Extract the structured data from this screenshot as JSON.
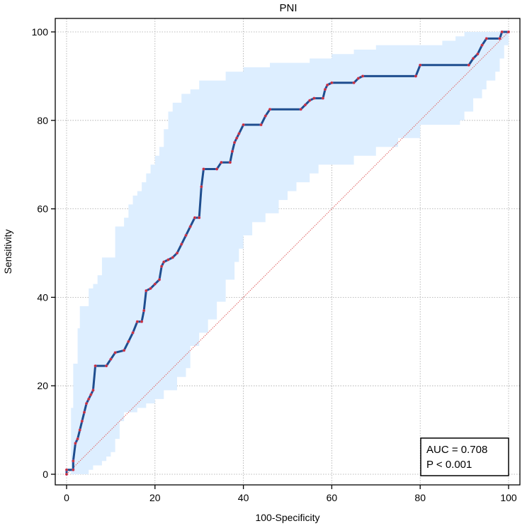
{
  "chart_data": {
    "type": "line",
    "title": "PNI",
    "xlabel": "100-Specificity",
    "ylabel": "Sensitivity",
    "xlim": [
      0,
      100
    ],
    "ylim": [
      0,
      100
    ],
    "xticks": [
      0,
      20,
      40,
      60,
      80,
      100
    ],
    "yticks": [
      0,
      20,
      40,
      60,
      80,
      100
    ],
    "grid": true,
    "annotation": {
      "auc": "AUC = 0.708",
      "p": "P < 0.001",
      "position": "bottom-right"
    },
    "colors": {
      "roc": "#1f4e8f",
      "points": "#c0392b",
      "ci_band": "#ddeeff",
      "diagonal": "#e06060",
      "grid": "#a8a8a8"
    },
    "series": [
      {
        "name": "ROC curve",
        "points": [
          [
            0,
            0
          ],
          [
            0,
            1
          ],
          [
            1.5,
            1
          ],
          [
            1.5,
            3
          ],
          [
            2,
            7
          ],
          [
            2.5,
            8
          ],
          [
            3,
            10
          ],
          [
            3.5,
            12
          ],
          [
            4,
            14
          ],
          [
            4.5,
            16
          ],
          [
            5,
            17
          ],
          [
            5.5,
            18
          ],
          [
            6,
            19
          ],
          [
            6.5,
            24.5
          ],
          [
            9,
            24.5
          ],
          [
            10,
            26
          ],
          [
            11,
            27.5
          ],
          [
            13,
            28
          ],
          [
            14,
            30
          ],
          [
            15,
            32
          ],
          [
            16,
            34.5
          ],
          [
            17,
            34.5
          ],
          [
            17.5,
            37
          ],
          [
            18,
            41.5
          ],
          [
            19,
            42
          ],
          [
            20,
            43
          ],
          [
            21,
            44
          ],
          [
            21.5,
            47
          ],
          [
            22,
            48
          ],
          [
            23,
            48.5
          ],
          [
            24,
            49
          ],
          [
            25,
            50
          ],
          [
            26,
            52
          ],
          [
            27,
            54
          ],
          [
            28,
            56
          ],
          [
            29,
            58
          ],
          [
            30,
            58
          ],
          [
            30.5,
            65
          ],
          [
            31,
            69
          ],
          [
            34,
            69
          ],
          [
            35,
            70.5
          ],
          [
            37,
            70.5
          ],
          [
            37.5,
            73
          ],
          [
            38,
            75
          ],
          [
            38.5,
            76
          ],
          [
            39,
            77
          ],
          [
            40,
            79
          ],
          [
            44,
            79
          ],
          [
            45,
            81
          ],
          [
            46,
            82.5
          ],
          [
            53,
            82.5
          ],
          [
            54,
            83.5
          ],
          [
            55,
            84.5
          ],
          [
            56,
            85
          ],
          [
            58,
            85
          ],
          [
            58.5,
            87
          ],
          [
            59,
            88
          ],
          [
            60,
            88.5
          ],
          [
            65,
            88.5
          ],
          [
            66,
            89.5
          ],
          [
            67,
            90
          ],
          [
            79,
            90
          ],
          [
            80,
            92.5
          ],
          [
            91,
            92.5
          ],
          [
            92,
            94
          ],
          [
            93,
            95
          ],
          [
            94,
            97
          ],
          [
            95,
            98.5
          ],
          [
            98,
            98.5
          ],
          [
            98.5,
            100
          ],
          [
            100,
            100
          ]
        ]
      },
      {
        "name": "CI upper",
        "points": [
          [
            0,
            0
          ],
          [
            1,
            15
          ],
          [
            1.5,
            25
          ],
          [
            2.5,
            33
          ],
          [
            3,
            38
          ],
          [
            4,
            38
          ],
          [
            5,
            42
          ],
          [
            6,
            43
          ],
          [
            7,
            45
          ],
          [
            8,
            49
          ],
          [
            10,
            49
          ],
          [
            11,
            56
          ],
          [
            12,
            56
          ],
          [
            13,
            58
          ],
          [
            14,
            61
          ],
          [
            15,
            63
          ],
          [
            16,
            64
          ],
          [
            17,
            66
          ],
          [
            18,
            68
          ],
          [
            19,
            70
          ],
          [
            20,
            72
          ],
          [
            21,
            74
          ],
          [
            22,
            78
          ],
          [
            23,
            82
          ],
          [
            24,
            84
          ],
          [
            26,
            86
          ],
          [
            28,
            87
          ],
          [
            30,
            89
          ],
          [
            35,
            89
          ],
          [
            36,
            91
          ],
          [
            38,
            91
          ],
          [
            40,
            92
          ],
          [
            45,
            92
          ],
          [
            46,
            93
          ],
          [
            55,
            94
          ],
          [
            60,
            95
          ],
          [
            65,
            96
          ],
          [
            67,
            96
          ],
          [
            70,
            97
          ],
          [
            80,
            97
          ],
          [
            85,
            98
          ],
          [
            88,
            99
          ],
          [
            90,
            100
          ],
          [
            100,
            100
          ]
        ]
      },
      {
        "name": "CI lower",
        "points": [
          [
            0,
            0
          ],
          [
            3,
            0
          ],
          [
            4,
            0
          ],
          [
            5,
            1
          ],
          [
            6,
            2
          ],
          [
            7,
            2
          ],
          [
            8,
            3
          ],
          [
            9,
            4
          ],
          [
            10,
            5
          ],
          [
            11,
            8
          ],
          [
            12,
            12
          ],
          [
            13,
            14
          ],
          [
            15,
            14
          ],
          [
            16,
            15
          ],
          [
            18,
            16
          ],
          [
            20,
            17
          ],
          [
            22,
            19
          ],
          [
            25,
            22
          ],
          [
            27,
            24
          ],
          [
            28,
            29
          ],
          [
            30,
            32
          ],
          [
            32,
            35
          ],
          [
            34,
            39
          ],
          [
            36,
            44
          ],
          [
            38,
            48
          ],
          [
            39,
            51
          ],
          [
            40,
            54
          ],
          [
            42,
            57
          ],
          [
            45,
            59
          ],
          [
            48,
            62
          ],
          [
            50,
            64
          ],
          [
            52,
            66
          ],
          [
            55,
            68
          ],
          [
            57,
            70
          ],
          [
            60,
            70
          ],
          [
            65,
            72
          ],
          [
            70,
            74
          ],
          [
            75,
            76
          ],
          [
            80,
            79
          ],
          [
            88,
            79
          ],
          [
            89,
            80
          ],
          [
            90,
            82
          ],
          [
            92,
            85
          ],
          [
            94,
            87
          ],
          [
            95,
            89
          ],
          [
            97,
            91
          ],
          [
            98,
            94
          ],
          [
            99,
            97
          ],
          [
            100,
            100
          ]
        ]
      },
      {
        "name": "Reference line",
        "points": [
          [
            0,
            0
          ],
          [
            100,
            100
          ]
        ]
      }
    ]
  }
}
